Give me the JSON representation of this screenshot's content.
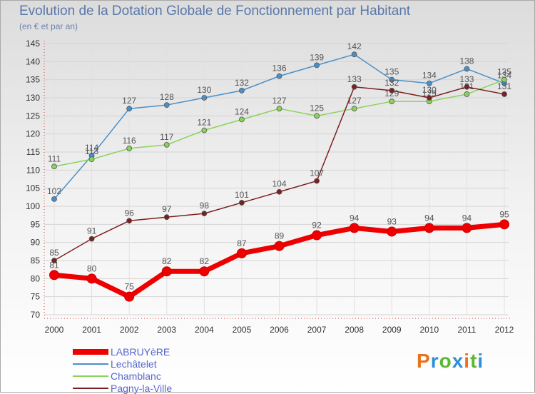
{
  "title": "Evolution de la Dotation Globale de Fonctionnement par Habitant",
  "subtitle": "(en € et par an)",
  "logo": {
    "text": "Proxiti",
    "letters": [
      "P",
      "r",
      "o",
      "x",
      "i",
      "t",
      "i"
    ],
    "colors": [
      "#e8731c",
      "#2f8fd8",
      "#5bb82e",
      "#2f8fd8",
      "#e8731c",
      "#5bb82e",
      "#2f8fd8"
    ]
  },
  "chart_data": {
    "type": "line",
    "title": "Evolution de la Dotation Globale de Fonctionnement par Habitant",
    "ylabel": "(en € et par an)",
    "xlabel": "",
    "x": [
      "2000",
      "2001",
      "2002",
      "2003",
      "2004",
      "2005",
      "2006",
      "2007",
      "2008",
      "2009",
      "2010",
      "2011",
      "2012"
    ],
    "ylim": [
      70,
      145
    ],
    "yticks": [
      70,
      75,
      80,
      85,
      90,
      95,
      100,
      105,
      110,
      115,
      120,
      125,
      130,
      135,
      140,
      145
    ],
    "grid": true,
    "legend_position": "bottom-left",
    "series": [
      {
        "name": "LABRUYèRE",
        "color": "#ee0000",
        "emphasis": true,
        "values": [
          81,
          80,
          75,
          82,
          82,
          87,
          89,
          92,
          94,
          93,
          94,
          94,
          95
        ]
      },
      {
        "name": "Lechâtelet",
        "color": "#4a90c8",
        "emphasis": false,
        "values": [
          102,
          114,
          127,
          128,
          130,
          132,
          136,
          139,
          142,
          135,
          134,
          138,
          134
        ]
      },
      {
        "name": "Chamblanc",
        "color": "#8ad35a",
        "emphasis": false,
        "values": [
          111,
          113,
          116,
          117,
          121,
          124,
          127,
          125,
          127,
          129,
          129,
          131,
          135
        ]
      },
      {
        "name": "Pagny-la-Ville",
        "color": "#7a2020",
        "emphasis": false,
        "values": [
          85,
          91,
          96,
          97,
          98,
          101,
          104,
          107,
          133,
          132,
          130,
          133,
          131
        ]
      }
    ]
  }
}
